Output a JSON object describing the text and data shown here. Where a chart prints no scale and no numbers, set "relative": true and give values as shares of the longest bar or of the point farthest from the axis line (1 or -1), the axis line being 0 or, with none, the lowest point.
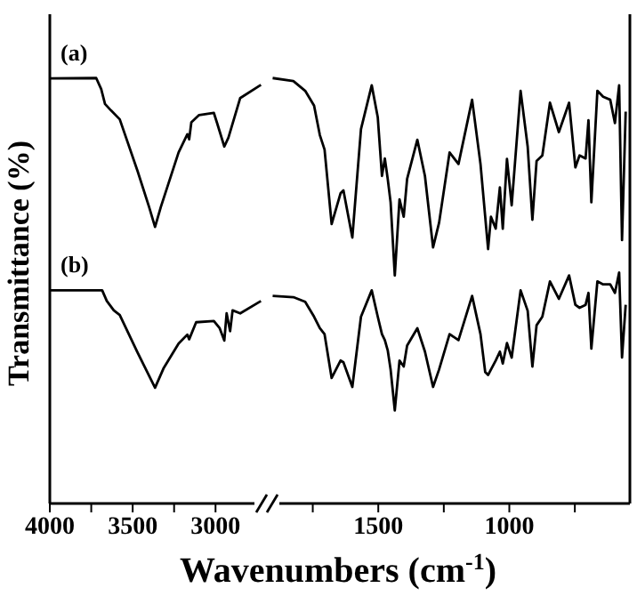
{
  "chart_data": [
    {
      "type": "line",
      "ylabel": "Transmittance (%)",
      "xlabel": "Wavenumbers (cm$^{-1}$)",
      "relative": true,
      "xlim": [
        4000,
        2690
      ],
      "xticks": [
        4000,
        {
          "value": 3750,
          "label": null
        },
        3500,
        {
          "value": 3250,
          "label": null
        },
        3000
      ],
      "grid": false,
      "legend": false,
      "marker": "none",
      "line_style": "solid",
      "series": [
        {
          "name": "(a)",
          "color": "#000000",
          "x": [
            4000,
            3720,
            3690,
            3667,
            3631,
            3578,
            3471,
            3401,
            3365,
            3330,
            3223,
            3170,
            3159,
            3146,
            3099,
            3010,
            2992,
            2947,
            2922,
            2851,
            2726
          ],
          "values": [
            0.999,
            1,
            0.974,
            0.939,
            0.924,
            0.903,
            0.782,
            0.697,
            0.65,
            0.697,
            0.825,
            0.868,
            0.856,
            0.896,
            0.913,
            0.918,
            0.896,
            0.839,
            0.86,
            0.953,
            0.984
          ]
        },
        {
          "name": "(b)",
          "color": "#000000",
          "x": [
            4000,
            3684,
            3656,
            3614,
            3578,
            3471,
            3365,
            3312,
            3223,
            3170,
            3159,
            3117,
            3010,
            2975,
            2947,
            2933,
            2912,
            2897,
            2851,
            2726
          ],
          "values": [
            0.501,
            0.501,
            0.476,
            0.454,
            0.443,
            0.355,
            0.272,
            0.319,
            0.376,
            0.397,
            0.386,
            0.426,
            0.429,
            0.412,
            0.383,
            0.447,
            0.405,
            0.454,
            0.447,
            0.476
          ]
        }
      ]
    },
    {
      "type": "line",
      "relative": true,
      "xlim": [
        1925,
        540
      ],
      "xticks": [
        {
          "value": 1750,
          "label": null
        },
        1500,
        {
          "value": 1250,
          "label": null
        },
        1000,
        {
          "value": 750,
          "label": null
        }
      ],
      "grid": false,
      "legend": false,
      "marker": "none",
      "line_style": "solid",
      "series": [
        {
          "color": "#000000",
          "x": [
            1903,
            1824,
            1779,
            1745,
            1723,
            1705,
            1678,
            1644,
            1633,
            1599,
            1566,
            1525,
            1502,
            1486,
            1475,
            1464,
            1453,
            1437,
            1419,
            1403,
            1390,
            1351,
            1322,
            1291,
            1268,
            1228,
            1194,
            1142,
            1110,
            1092,
            1081,
            1070,
            1052,
            1036,
            1025,
            1009,
            991,
            957,
            930,
            912,
            896,
            874,
            845,
            811,
            772,
            748,
            732,
            709,
            698,
            687,
            664,
            642,
            615,
            597,
            581,
            570,
            556
          ],
          "values": [
            1,
            0.993,
            0.97,
            0.935,
            0.866,
            0.832,
            0.657,
            0.729,
            0.736,
            0.625,
            0.88,
            0.983,
            0.908,
            0.77,
            0.811,
            0.763,
            0.708,
            0.536,
            0.715,
            0.674,
            0.763,
            0.855,
            0.77,
            0.602,
            0.66,
            0.825,
            0.798,
            0.949,
            0.798,
            0.674,
            0.598,
            0.674,
            0.646,
            0.743,
            0.646,
            0.81,
            0.701,
            0.97,
            0.839,
            0.667,
            0.805,
            0.818,
            0.942,
            0.873,
            0.942,
            0.79,
            0.818,
            0.811,
            0.901,
            0.708,
            0.97,
            0.956,
            0.949,
            0.894,
            0.983,
            0.619,
            0.921
          ]
        },
        {
          "color": "#000000",
          "x": [
            1903,
            1824,
            1779,
            1745,
            1723,
            1705,
            1678,
            1644,
            1633,
            1599,
            1566,
            1525,
            1502,
            1486,
            1475,
            1464,
            1453,
            1437,
            1419,
            1403,
            1390,
            1351,
            1322,
            1291,
            1268,
            1228,
            1194,
            1142,
            1110,
            1092,
            1081,
            1070,
            1052,
            1036,
            1025,
            1009,
            991,
            957,
            930,
            912,
            896,
            874,
            845,
            811,
            772,
            748,
            732,
            709,
            698,
            687,
            664,
            642,
            615,
            597,
            581,
            570,
            556
          ],
          "values": [
            0.488,
            0.485,
            0.474,
            0.439,
            0.412,
            0.398,
            0.295,
            0.336,
            0.332,
            0.274,
            0.439,
            0.501,
            0.439,
            0.398,
            0.384,
            0.36,
            0.315,
            0.219,
            0.336,
            0.322,
            0.371,
            0.412,
            0.357,
            0.274,
            0.315,
            0.398,
            0.384,
            0.488,
            0.398,
            0.309,
            0.302,
            0.315,
            0.336,
            0.357,
            0.329,
            0.377,
            0.343,
            0.501,
            0.453,
            0.322,
            0.419,
            0.439,
            0.522,
            0.481,
            0.536,
            0.467,
            0.46,
            0.467,
            0.495,
            0.364,
            0.522,
            0.515,
            0.515,
            0.495,
            0.543,
            0.343,
            0.467
          ]
        }
      ]
    }
  ]
}
